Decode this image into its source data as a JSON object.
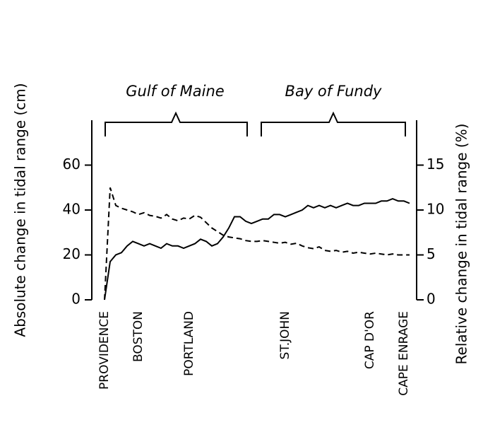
{
  "chart_data": {
    "type": "line",
    "ylabel": "Absolute change in tidal range (cm)",
    "y2label": "Relative change in tidal range (%)",
    "annotations": [
      "Gulf of Maine",
      "Bay of Fundy"
    ],
    "categories": [
      "PROVIDENCE",
      null,
      null,
      null,
      null,
      null,
      "BOSTON",
      null,
      null,
      null,
      null,
      null,
      null,
      null,
      null,
      "PORTLAND",
      null,
      null,
      null,
      null,
      null,
      null,
      null,
      null,
      null,
      null,
      null,
      null,
      null,
      null,
      null,
      null,
      "ST.JOHN",
      null,
      null,
      null,
      null,
      null,
      null,
      null,
      null,
      null,
      null,
      null,
      null,
      null,
      null,
      "CAP D'OR",
      null,
      null,
      null,
      null,
      null,
      "CAPE ENRAGE",
      null
    ],
    "series": [
      {
        "name": "Absolute",
        "color": "#000000",
        "style": "solid",
        "axis": "y",
        "values": [
          0,
          17,
          20,
          21,
          24,
          26,
          25,
          24,
          25,
          24,
          23,
          25,
          24,
          24,
          23,
          24,
          25,
          27,
          26,
          24,
          25,
          28,
          32,
          37,
          37,
          35,
          34,
          35,
          36,
          36,
          38,
          38,
          37,
          38,
          39,
          40,
          42,
          41,
          42,
          41,
          42,
          41,
          42,
          43,
          42,
          42,
          43,
          43,
          43,
          44,
          44,
          45,
          44,
          44,
          43
        ]
      },
      {
        "name": "Relative",
        "color": "#000000",
        "style": "dashed",
        "axis": "y2",
        "values": [
          0,
          12.5,
          10.5,
          10.2,
          10,
          9.8,
          9.5,
          9.7,
          9.4,
          9.3,
          9.1,
          9.5,
          9,
          8.8,
          9.1,
          9,
          9.4,
          9.2,
          8.6,
          8,
          7.6,
          7.2,
          7,
          6.9,
          6.8,
          6.6,
          6.5,
          6.5,
          6.6,
          6.5,
          6.4,
          6.3,
          6.4,
          6.2,
          6.3,
          6,
          5.8,
          5.7,
          5.9,
          5.5,
          5.4,
          5.5,
          5.3,
          5.4,
          5.2,
          5.3,
          5.2,
          5.1,
          5.2,
          5.1,
          5,
          5.1,
          5,
          5,
          5
        ]
      }
    ],
    "ylim": [
      0,
      80
    ],
    "yticks": [
      0,
      20,
      40,
      60
    ],
    "y2lim": [
      0,
      20
    ],
    "y2ticks": [
      0,
      5,
      10,
      15
    ],
    "grid": false
  }
}
